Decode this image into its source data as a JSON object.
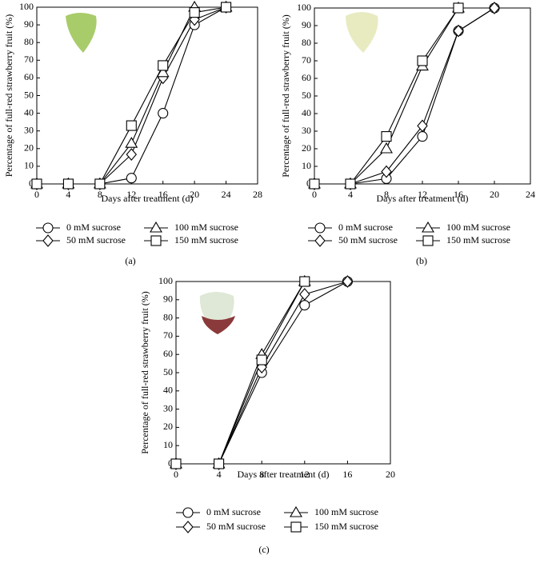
{
  "chart_data": [
    {
      "type": "line",
      "caption": "(a)",
      "xlabel": "Days after treatment (d)",
      "ylabel": "Percentage of full-red strawberry fruit (%)",
      "x": [
        0,
        4,
        8,
        12,
        16,
        20,
        24
      ],
      "xlim": [
        0,
        28
      ],
      "xticks": [
        0,
        4,
        8,
        12,
        16,
        20,
        24,
        28
      ],
      "ylim": [
        0,
        100
      ],
      "yticks": [
        0,
        10,
        20,
        30,
        40,
        50,
        60,
        70,
        80,
        90,
        100
      ],
      "grid": false,
      "series": [
        {
          "name": "0 mM sucrose",
          "color": "#000000",
          "marker": "circle",
          "values": [
            0,
            0,
            0,
            3.3,
            40,
            90,
            100
          ]
        },
        {
          "name": "50 mM sucrose",
          "color": "#000000",
          "marker": "diamond",
          "values": [
            0,
            0,
            0,
            16.7,
            60,
            93,
            100
          ]
        },
        {
          "name": "100 mM sucrose",
          "color": "#000000",
          "marker": "triangle",
          "values": [
            0,
            0,
            0,
            23,
            63,
            100,
            100
          ]
        },
        {
          "name": "150 mM sucrose",
          "color": "#000000",
          "marker": "square",
          "values": [
            0,
            0,
            0,
            33,
            67,
            97,
            100
          ]
        }
      ]
    },
    {
      "type": "line",
      "caption": "(b)",
      "xlabel": "Days after treatment (d)",
      "ylabel": "Percentage of full-red strawberry fruit (%)",
      "x": [
        0,
        4,
        8,
        12,
        16,
        20
      ],
      "xlim": [
        0,
        24
      ],
      "xticks": [
        0,
        4,
        8,
        12,
        16,
        20,
        24
      ],
      "ylim": [
        0,
        100
      ],
      "yticks": [
        0,
        10,
        20,
        30,
        40,
        50,
        60,
        70,
        80,
        90,
        100
      ],
      "grid": false,
      "series": [
        {
          "name": "0 mM sucrose",
          "color": "#000000",
          "marker": "circle",
          "values": [
            0,
            0,
            3,
            27,
            87,
            100
          ]
        },
        {
          "name": "50 mM sucrose",
          "color": "#000000",
          "marker": "diamond",
          "values": [
            0,
            0,
            7,
            33,
            87,
            100
          ]
        },
        {
          "name": "100 mM sucrose",
          "color": "#000000",
          "marker": "triangle",
          "values": [
            0,
            0,
            20,
            67,
            100,
            null
          ]
        },
        {
          "name": "150 mM sucrose",
          "color": "#000000",
          "marker": "square",
          "values": [
            0,
            0,
            27,
            70,
            100,
            null
          ]
        }
      ]
    },
    {
      "type": "line",
      "caption": "(c)",
      "xlabel": "Days after treatment (d)",
      "ylabel": "Percentage of full-red strawberry fruit (%)",
      "x": [
        0,
        4,
        8,
        12,
        16
      ],
      "xlim": [
        0,
        20
      ],
      "xticks": [
        0,
        4,
        8,
        12,
        16,
        20
      ],
      "ylim": [
        0,
        100
      ],
      "yticks": [
        0,
        10,
        20,
        30,
        40,
        50,
        60,
        70,
        80,
        90,
        100
      ],
      "grid": false,
      "series": [
        {
          "name": "0 mM sucrose",
          "color": "#000000",
          "marker": "circle",
          "values": [
            0,
            0,
            50,
            87,
            100
          ]
        },
        {
          "name": "50 mM sucrose",
          "color": "#000000",
          "marker": "diamond",
          "values": [
            0,
            0,
            53,
            93,
            100
          ]
        },
        {
          "name": "100 mM sucrose",
          "color": "#000000",
          "marker": "triangle",
          "values": [
            0,
            0,
            60,
            100,
            null
          ]
        },
        {
          "name": "150 mM sucrose",
          "color": "#000000",
          "marker": "square",
          "values": [
            0,
            0,
            57,
            100,
            null
          ]
        }
      ]
    }
  ]
}
